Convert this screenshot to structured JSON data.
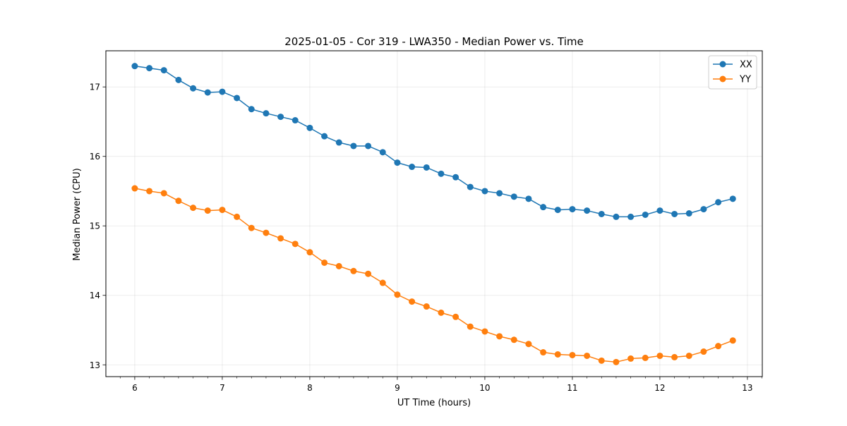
{
  "chart_data": {
    "type": "line",
    "title": "2025-01-05 - Cor 319 - LWA350 - Median Power vs. Time",
    "xlabel": "UT Time (hours)",
    "ylabel": "Median Power (CPU)",
    "xlim": [
      5.67,
      13.17
    ],
    "ylim": [
      12.83,
      17.52
    ],
    "xticks": [
      6,
      7,
      8,
      9,
      10,
      11,
      12,
      13
    ],
    "yticks": [
      13,
      14,
      15,
      16,
      17
    ],
    "grid": true,
    "legend_position": "top-right",
    "x": [
      6.0,
      6.1667,
      6.3333,
      6.5,
      6.6667,
      6.8333,
      7.0,
      7.1667,
      7.3333,
      7.5,
      7.6667,
      7.8333,
      8.0,
      8.1667,
      8.3333,
      8.5,
      8.6667,
      8.8333,
      9.0,
      9.1667,
      9.3333,
      9.5,
      9.6667,
      9.8333,
      10.0,
      10.1667,
      10.3333,
      10.5,
      10.6667,
      10.8333,
      11.0,
      11.1667,
      11.3333,
      11.5,
      11.6667,
      11.8333,
      12.0,
      12.1667,
      12.3333,
      12.5,
      12.6667,
      12.8333
    ],
    "series": [
      {
        "name": "XX",
        "color": "#1f77b4",
        "values": [
          17.3,
          17.27,
          17.24,
          17.1,
          16.98,
          16.92,
          16.93,
          16.84,
          16.68,
          16.62,
          16.57,
          16.52,
          16.41,
          16.29,
          16.2,
          16.15,
          16.15,
          16.06,
          15.91,
          15.85,
          15.84,
          15.75,
          15.7,
          15.56,
          15.5,
          15.47,
          15.42,
          15.39,
          15.27,
          15.23,
          15.24,
          15.22,
          15.17,
          15.13,
          15.13,
          15.16,
          15.22,
          15.17,
          15.18,
          15.24,
          15.34,
          15.39
        ]
      },
      {
        "name": "YY",
        "color": "#ff7f0e",
        "values": [
          15.54,
          15.5,
          15.47,
          15.36,
          15.26,
          15.22,
          15.23,
          15.13,
          14.97,
          14.9,
          14.82,
          14.74,
          14.62,
          14.47,
          14.42,
          14.35,
          14.31,
          14.18,
          14.01,
          13.91,
          13.84,
          13.75,
          13.69,
          13.55,
          13.48,
          13.41,
          13.36,
          13.3,
          13.18,
          13.15,
          13.14,
          13.13,
          13.06,
          13.04,
          13.09,
          13.1,
          13.13,
          13.11,
          13.13,
          13.19,
          13.27,
          13.35
        ]
      }
    ]
  }
}
